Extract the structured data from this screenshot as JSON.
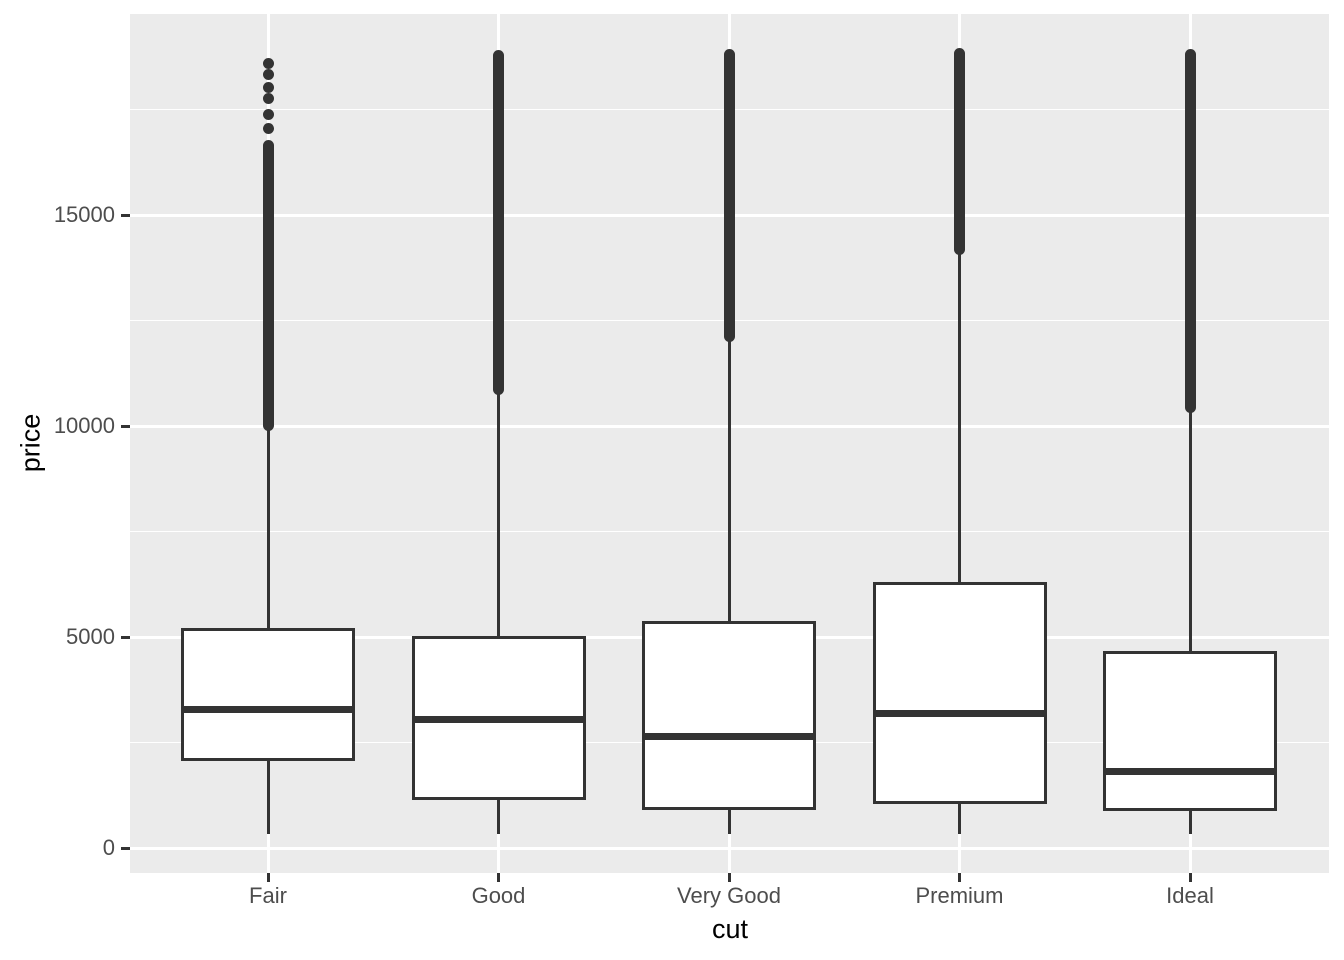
{
  "chart_data": {
    "type": "boxplot",
    "title": "",
    "xlabel": "cut",
    "ylabel": "price",
    "categories": [
      "Fair",
      "Good",
      "Very Good",
      "Premium",
      "Ideal"
    ],
    "y_major_ticks": [
      0,
      5000,
      10000,
      15000
    ],
    "y_minor_ticks": [
      2500,
      7500,
      12500,
      17500
    ],
    "ylim": [
      -600,
      19750
    ],
    "legend": "none",
    "grid": "on",
    "colors": {
      "panel_background": "#EBEBEB",
      "gridline": "#FFFFFF",
      "box_outline": "#333333",
      "box_fill": "#FFFFFF",
      "outlier": "#333333",
      "tick_text": "#4D4D4D",
      "axis_title_text": "#000000"
    },
    "series": [
      {
        "cut": "Fair",
        "whisker_low": 337,
        "q1": 2050,
        "median": 3282,
        "q3": 5205,
        "whisker_high": 9929,
        "outlier_band": [
          10020,
          16650
        ],
        "outlier_points": [
          17060,
          17370,
          17770,
          18030,
          18320,
          18600
        ]
      },
      {
        "cut": "Good",
        "whisker_low": 327,
        "q1": 1145,
        "median": 3050,
        "q3": 5028,
        "whisker_high": 10843,
        "outlier_band": [
          10870,
          18790
        ],
        "outlier_points": []
      },
      {
        "cut": "Very Good",
        "whisker_low": 336,
        "q1": 912,
        "median": 2648,
        "q3": 5373,
        "whisker_high": 12030,
        "outlier_band": [
          12120,
          18800
        ],
        "outlier_points": []
      },
      {
        "cut": "Premium",
        "whisker_low": 326,
        "q1": 1046,
        "median": 3185,
        "q3": 6296,
        "whisker_high": 14100,
        "outlier_band": [
          14180,
          18820
        ],
        "outlier_points": []
      },
      {
        "cut": "Ideal",
        "whisker_low": 326,
        "q1": 878,
        "median": 1810,
        "q3": 4679,
        "whisker_high": 10330,
        "outlier_band": [
          10430,
          18800
        ],
        "outlier_points": []
      }
    ]
  }
}
